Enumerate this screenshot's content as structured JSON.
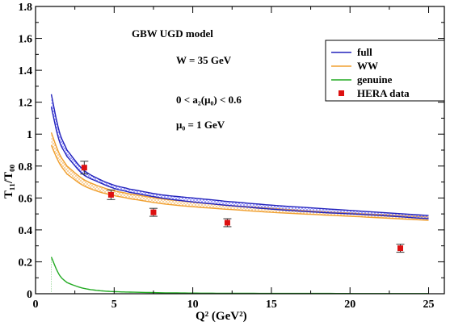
{
  "chart_data": {
    "type": "line",
    "title": "",
    "xlabel": "Q² (GeV²)",
    "ylabel": "T₁₁/T₀₀",
    "xlim": [
      0,
      26
    ],
    "ylim": [
      0,
      1.8
    ],
    "xticks": [
      0,
      5,
      10,
      15,
      20,
      25
    ],
    "yticks": [
      0,
      0.2,
      0.4,
      0.6,
      0.8,
      1,
      1.2,
      1.4,
      1.6,
      1.8
    ],
    "xtick_labels": [
      "0",
      "5",
      "10",
      "15",
      "20",
      "25"
    ],
    "ytick_labels": [
      "0",
      "0.2",
      "0.4",
      "0.6",
      "0.8",
      "1",
      "1.2",
      "1.4",
      "1.6",
      "1.8"
    ],
    "grid": false,
    "legend_position": "top-right",
    "annotations": {
      "model": "GBW UGD model",
      "energy": "W = 35 GeV",
      "a2_range": "0 < a₂(μ₀) < 0.6",
      "mu0": "μ₀ = 1 GeV"
    },
    "colors": {
      "full": "#2222bb",
      "WW": "#f0a030",
      "genuine": "#22aa22",
      "data": "#dd1111",
      "hatch_full": "#6a6aff",
      "hatch_ww": "#f5b866"
    },
    "series": [
      {
        "name": "full",
        "kind": "band",
        "x": [
          1,
          1.5,
          2,
          3,
          4,
          5,
          6,
          8,
          10,
          12,
          15,
          18,
          21,
          25
        ],
        "upper": [
          1.25,
          1.02,
          0.9,
          0.78,
          0.72,
          0.68,
          0.655,
          0.62,
          0.6,
          0.58,
          0.555,
          0.535,
          0.515,
          0.49
        ],
        "lower": [
          1.17,
          0.96,
          0.86,
          0.75,
          0.7,
          0.66,
          0.635,
          0.6,
          0.575,
          0.555,
          0.53,
          0.51,
          0.495,
          0.47
        ]
      },
      {
        "name": "WW",
        "kind": "band",
        "x": [
          1,
          1.5,
          2,
          3,
          4,
          5,
          6,
          8,
          10,
          12,
          15,
          18,
          21,
          25
        ],
        "upper": [
          1.01,
          0.88,
          0.8,
          0.72,
          0.675,
          0.645,
          0.625,
          0.595,
          0.575,
          0.555,
          0.535,
          0.515,
          0.5,
          0.48
        ],
        "lower": [
          0.93,
          0.82,
          0.75,
          0.68,
          0.64,
          0.615,
          0.595,
          0.565,
          0.545,
          0.53,
          0.51,
          0.495,
          0.48,
          0.46
        ]
      },
      {
        "name": "genuine",
        "kind": "line",
        "x": [
          1,
          1.5,
          2,
          3,
          4,
          5,
          6,
          8,
          10,
          12,
          15,
          18,
          21,
          25
        ],
        "y": [
          0.23,
          0.12,
          0.07,
          0.035,
          0.02,
          0.013,
          0.01,
          0.006,
          0.004,
          0.003,
          0.002,
          0.002,
          0.001,
          0.001
        ]
      },
      {
        "name": "HERA data",
        "kind": "points",
        "x": [
          3.1,
          4.8,
          7.5,
          12.2,
          23.2
        ],
        "y": [
          0.79,
          0.62,
          0.51,
          0.445,
          0.285
        ],
        "err": [
          0.04,
          0.03,
          0.025,
          0.025,
          0.025
        ]
      }
    ]
  }
}
